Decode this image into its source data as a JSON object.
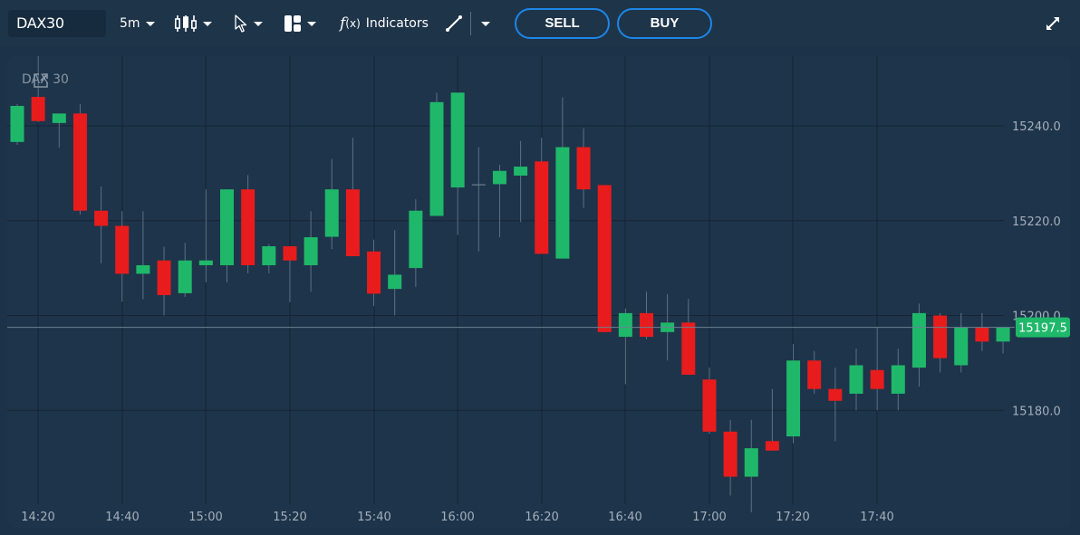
{
  "toolbar": {
    "symbol": "DAX30",
    "interval": "5m",
    "indicators_label": "Indicators",
    "indicators_icon": "f(x)",
    "sell_label": "SELL",
    "buy_label": "BUY",
    "icons": [
      "candlestick-icon",
      "cursor-icon",
      "layout-icon",
      "function-icon",
      "draw-line-icon",
      "fullscreen-icon"
    ]
  },
  "chart": {
    "legend_title": "DAX 30",
    "legend_icon": "popout-icon",
    "current_price_label": "15197.5",
    "colors": {
      "up": "#1fb86a",
      "down": "#e81c1c",
      "background": "#1e344a",
      "grid": "#142434",
      "wick": "#5d7184",
      "price_tag": "#1fb86a"
    }
  },
  "chart_data": {
    "type": "candlestick",
    "title": "DAX 30",
    "interval": "5m",
    "xlabel": "",
    "ylabel": "",
    "x_tick_labels": [
      "14:20",
      "14:40",
      "15:00",
      "15:20",
      "15:40",
      "16:00",
      "16:20",
      "16:40",
      "17:00",
      "17:20",
      "17:40"
    ],
    "y_tick_labels": [
      "15240.0",
      "15220.0",
      "15200.0",
      "15180.0"
    ],
    "ylim": [
      15158,
      15255
    ],
    "grid": true,
    "last_price": 15197.5,
    "candles": [
      {
        "t": "14:15",
        "o": 15236.6,
        "h": 15244.6,
        "l": 15236.0,
        "c": 15244.2
      },
      {
        "t": "14:20",
        "o": 15246.1,
        "h": 15255.0,
        "l": 15240.8,
        "c": 15241.0
      },
      {
        "t": "14:25",
        "o": 15240.6,
        "h": 15242.6,
        "l": 15235.4,
        "c": 15242.6
      },
      {
        "t": "14:30",
        "o": 15242.6,
        "h": 15244.6,
        "l": 15221.3,
        "c": 15222.1
      },
      {
        "t": "14:35",
        "o": 15222.1,
        "h": 15227.2,
        "l": 15211.0,
        "c": 15218.9
      },
      {
        "t": "14:40",
        "o": 15218.9,
        "h": 15222.0,
        "l": 15202.9,
        "c": 15208.8
      },
      {
        "t": "14:45",
        "o": 15208.8,
        "h": 15222.0,
        "l": 15203.4,
        "c": 15210.6
      },
      {
        "t": "14:50",
        "o": 15211.6,
        "h": 15214.5,
        "l": 15200.0,
        "c": 15204.3
      },
      {
        "t": "14:55",
        "o": 15204.7,
        "h": 15215.3,
        "l": 15203.9,
        "c": 15211.6
      },
      {
        "t": "15:00",
        "o": 15210.6,
        "h": 15226.6,
        "l": 15207.0,
        "c": 15211.6
      },
      {
        "t": "15:05",
        "o": 15210.6,
        "h": 15226.6,
        "l": 15207.0,
        "c": 15226.6
      },
      {
        "t": "15:10",
        "o": 15226.6,
        "h": 15229.6,
        "l": 15208.9,
        "c": 15210.6
      },
      {
        "t": "15:15",
        "o": 15210.6,
        "h": 15215.0,
        "l": 15208.9,
        "c": 15214.6
      },
      {
        "t": "15:20",
        "o": 15214.6,
        "h": 15214.6,
        "l": 15202.8,
        "c": 15211.6
      },
      {
        "t": "15:25",
        "o": 15210.6,
        "h": 15222.0,
        "l": 15205.0,
        "c": 15216.5
      },
      {
        "t": "15:30",
        "o": 15216.6,
        "h": 15233.0,
        "l": 15214.0,
        "c": 15226.6
      },
      {
        "t": "15:35",
        "o": 15226.6,
        "h": 15237.5,
        "l": 15212.5,
        "c": 15212.5
      },
      {
        "t": "15:40",
        "o": 15213.5,
        "h": 15216.0,
        "l": 15202.0,
        "c": 15204.6
      },
      {
        "t": "15:45",
        "o": 15205.6,
        "h": 15218.0,
        "l": 15200.0,
        "c": 15208.6
      },
      {
        "t": "15:50",
        "o": 15210.0,
        "h": 15224.5,
        "l": 15206.0,
        "c": 15222.1
      },
      {
        "t": "15:55",
        "o": 15221.0,
        "h": 15247.0,
        "l": 15221.0,
        "c": 15245.0
      },
      {
        "t": "16:00",
        "o": 15227.0,
        "h": 15247.0,
        "l": 15217.0,
        "c": 15247.0
      },
      {
        "t": "16:05",
        "o": 15227.7,
        "h": 15235.5,
        "l": 15213.5,
        "c": 15227.7
      },
      {
        "t": "16:10",
        "o": 15227.7,
        "h": 15231.8,
        "l": 15216.5,
        "c": 15230.5
      },
      {
        "t": "16:15",
        "o": 15229.5,
        "h": 15236.8,
        "l": 15219.7,
        "c": 15231.4
      },
      {
        "t": "16:20",
        "o": 15232.5,
        "h": 15237.5,
        "l": 15213.0,
        "c": 15213.0
      },
      {
        "t": "16:25",
        "o": 15212.0,
        "h": 15246.0,
        "l": 15212.0,
        "c": 15235.5
      },
      {
        "t": "16:30",
        "o": 15235.5,
        "h": 15239.5,
        "l": 15222.7,
        "c": 15226.6
      },
      {
        "t": "16:35",
        "o": 15227.5,
        "h": 15227.5,
        "l": 15196.5,
        "c": 15196.5
      },
      {
        "t": "16:40",
        "o": 15195.5,
        "h": 15201.5,
        "l": 15185.5,
        "c": 15200.5
      },
      {
        "t": "16:45",
        "o": 15200.5,
        "h": 15205.0,
        "l": 15195.0,
        "c": 15195.5
      },
      {
        "t": "16:50",
        "o": 15196.5,
        "h": 15204.5,
        "l": 15190.5,
        "c": 15198.5
      },
      {
        "t": "16:55",
        "o": 15198.5,
        "h": 15203.5,
        "l": 15187.5,
        "c": 15187.5
      },
      {
        "t": "17:00",
        "o": 15186.5,
        "h": 15189.0,
        "l": 15175.0,
        "c": 15175.5
      },
      {
        "t": "17:05",
        "o": 15175.5,
        "h": 15178.0,
        "l": 15162.0,
        "c": 15166.0
      },
      {
        "t": "17:10",
        "o": 15166.0,
        "h": 15178.0,
        "l": 15158.5,
        "c": 15172.0
      },
      {
        "t": "17:15",
        "o": 15173.5,
        "h": 15184.5,
        "l": 15171.5,
        "c": 15171.5
      },
      {
        "t": "17:20",
        "o": 15174.5,
        "h": 15194.0,
        "l": 15173.0,
        "c": 15190.5
      },
      {
        "t": "17:25",
        "o": 15190.5,
        "h": 15192.5,
        "l": 15183.5,
        "c": 15184.5
      },
      {
        "t": "17:30",
        "o": 15184.5,
        "h": 15189.0,
        "l": 15173.5,
        "c": 15182.0
      },
      {
        "t": "17:35",
        "o": 15183.5,
        "h": 15193.0,
        "l": 15180.0,
        "c": 15189.5
      },
      {
        "t": "17:40",
        "o": 15188.5,
        "h": 15197.5,
        "l": 15180.0,
        "c": 15184.5
      },
      {
        "t": "17:45",
        "o": 15183.5,
        "h": 15193.0,
        "l": 15180.0,
        "c": 15189.5
      },
      {
        "t": "17:50",
        "o": 15189.0,
        "h": 15202.5,
        "l": 15185.0,
        "c": 15200.5
      },
      {
        "t": "17:55",
        "o": 15200.0,
        "h": 15200.5,
        "l": 15188.0,
        "c": 15191.0
      },
      {
        "t": "18:00",
        "o": 15189.5,
        "h": 15200.5,
        "l": 15188.0,
        "c": 15197.5
      },
      {
        "t": "18:05",
        "o": 15197.5,
        "h": 15200.5,
        "l": 15192.5,
        "c": 15194.5
      },
      {
        "t": "18:10",
        "o": 15194.5,
        "h": 15197.5,
        "l": 15192.0,
        "c": 15197.5
      }
    ]
  }
}
